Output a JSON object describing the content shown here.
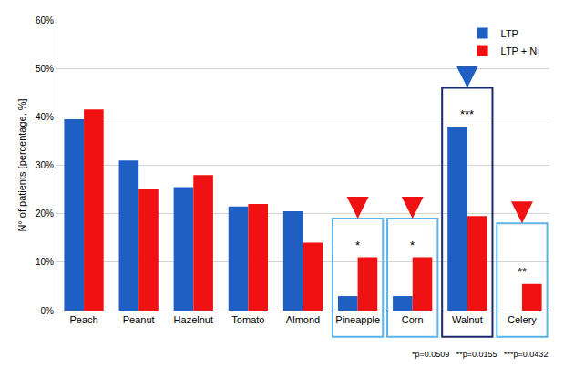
{
  "chart_data": {
    "type": "bar",
    "y_label": "N° of patients [percentage, %]",
    "categories": [
      "Peach",
      "Peanut",
      "Hazelnut",
      "Tomato",
      "Almond",
      "Pineapple",
      "Corn",
      "Walnut",
      "Celery"
    ],
    "series": [
      {
        "name": "LTP",
        "color": "#1f5fc4",
        "values": [
          39.5,
          31,
          25.5,
          21.5,
          20.5,
          3,
          3,
          38,
          0
        ]
      },
      {
        "name": "LTP + Ni",
        "color": "#f01212",
        "values": [
          41.5,
          25,
          28,
          22,
          14,
          11,
          11,
          19.5,
          5.5
        ]
      }
    ],
    "ylim": [
      0,
      60
    ],
    "yticks": [
      {
        "value": 0,
        "label": "0%"
      },
      {
        "value": 10,
        "label": "10%"
      },
      {
        "value": 20,
        "label": "20%"
      },
      {
        "value": 30,
        "label": "30%"
      },
      {
        "value": 40,
        "label": "40%"
      },
      {
        "value": 50,
        "label": "50%"
      },
      {
        "value": 60,
        "label": "60%"
      }
    ],
    "grid": true,
    "legend": "top right",
    "annotations": [
      {
        "category": "Pineapple",
        "text": "*"
      },
      {
        "category": "Corn",
        "text": "*"
      },
      {
        "category": "Walnut",
        "text": "***"
      },
      {
        "category": "Celery",
        "text": "**"
      }
    ],
    "footnote": "*p=0.0509   **p=0.0155   ***p=0.0432"
  }
}
